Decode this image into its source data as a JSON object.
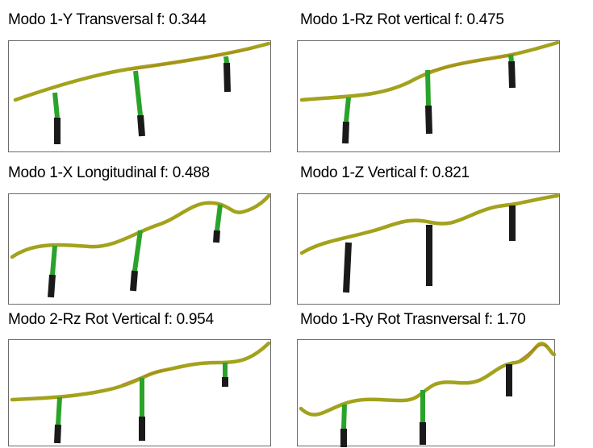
{
  "modes": [
    {
      "title": "Modo 1-Y Transversal f: 0.344"
    },
    {
      "title": "Modo 1-Rz Rot vertical f: 0.475"
    },
    {
      "title": "Modo 1-X Longitudinal f: 0.488"
    },
    {
      "title": "Modo 1-Z Vertical f: 0.821"
    },
    {
      "title": "Modo 2-Rz Rot Vertical f: 0.954"
    },
    {
      "title": "Modo 1-Ry Rot Trasnversal f: 1.70"
    }
  ],
  "colors": {
    "deck": "#a3a21c",
    "deck_hot": "#b8691c",
    "pier_top": "#2aa32a",
    "pier_base": "#1a1a1a",
    "frame": "#6b6b6b"
  }
}
